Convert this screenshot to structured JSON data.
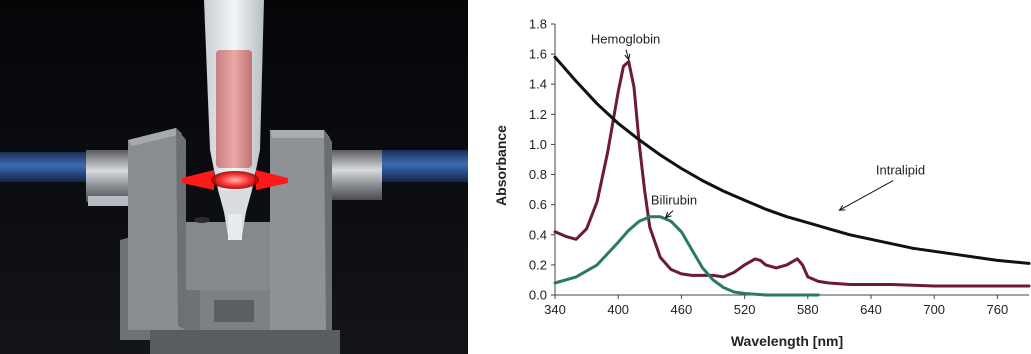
{
  "chart_data": {
    "type": "line",
    "xlabel": "Wavelength [nm]",
    "ylabel": "Absorbance",
    "xlim": [
      340,
      790
    ],
    "ylim": [
      0,
      1.8
    ],
    "xticks": [
      "340",
      "400",
      "460",
      "520",
      "580",
      "640",
      "700",
      "760"
    ],
    "yticks": [
      "0.0",
      "0.2",
      "0.4",
      "0.6",
      "0.8",
      "1.0",
      "1.2",
      "1.4",
      "1.6",
      "1.8"
    ],
    "grid": false,
    "legend": "none (direct labels with arrows)",
    "series": [
      {
        "name": "Hemoglobin",
        "color": "#6e1a33",
        "x": [
          340,
          350,
          360,
          370,
          380,
          390,
          400,
          405,
          410,
          415,
          420,
          425,
          430,
          440,
          450,
          460,
          470,
          480,
          490,
          500,
          510,
          520,
          530,
          535,
          540,
          550,
          560,
          570,
          575,
          580,
          590,
          600,
          620,
          640,
          660,
          700,
          740,
          790
        ],
        "y": [
          0.42,
          0.39,
          0.37,
          0.44,
          0.62,
          0.95,
          1.35,
          1.52,
          1.55,
          1.38,
          1.0,
          0.7,
          0.45,
          0.25,
          0.17,
          0.14,
          0.13,
          0.13,
          0.13,
          0.12,
          0.15,
          0.2,
          0.24,
          0.23,
          0.2,
          0.18,
          0.2,
          0.24,
          0.2,
          0.12,
          0.09,
          0.08,
          0.07,
          0.07,
          0.07,
          0.06,
          0.06,
          0.06
        ]
      },
      {
        "name": "Bilirubin",
        "color": "#2a7a68",
        "x": [
          340,
          360,
          380,
          400,
          410,
          420,
          430,
          440,
          450,
          460,
          470,
          480,
          490,
          500,
          510,
          520,
          540,
          560,
          590
        ],
        "y": [
          0.08,
          0.12,
          0.2,
          0.35,
          0.43,
          0.49,
          0.52,
          0.52,
          0.49,
          0.42,
          0.3,
          0.18,
          0.1,
          0.05,
          0.02,
          0.01,
          0.0,
          0.0,
          0.0
        ]
      },
      {
        "name": "Intralipid",
        "color": "#111111",
        "x": [
          340,
          360,
          380,
          400,
          420,
          440,
          460,
          480,
          500,
          520,
          540,
          560,
          580,
          600,
          620,
          640,
          660,
          680,
          700,
          720,
          740,
          760,
          790
        ],
        "y": [
          1.58,
          1.42,
          1.27,
          1.14,
          1.03,
          0.93,
          0.84,
          0.76,
          0.69,
          0.63,
          0.57,
          0.52,
          0.48,
          0.44,
          0.4,
          0.37,
          0.34,
          0.31,
          0.29,
          0.27,
          0.25,
          0.23,
          0.21
        ]
      }
    ],
    "annotations": [
      {
        "text": "Hemoglobin",
        "series": "Hemoglobin",
        "x": 410,
        "y": 1.55,
        "label_x": 407,
        "label_y": 1.67
      },
      {
        "text": "Bilirubin",
        "series": "Bilirubin",
        "x": 445,
        "y": 0.5,
        "label_x": 453,
        "label_y": 0.6
      },
      {
        "text": "Intralipid",
        "series": "Intralipid",
        "x": 610,
        "y": 0.55,
        "label_x": 668,
        "label_y": 0.8
      }
    ]
  },
  "photo": {
    "panel_bg": "#0a0a0f",
    "fiber_color": "#2b4f88",
    "holder_color": "#8b8f91",
    "pipette_fill": "#e29a9a",
    "beam_color": "#ff1a1a"
  }
}
